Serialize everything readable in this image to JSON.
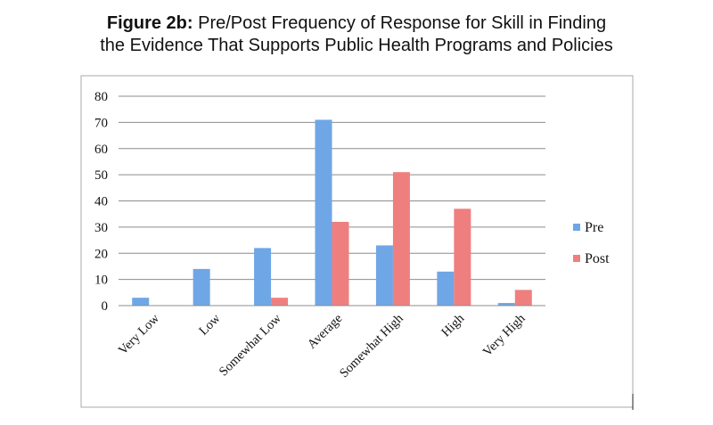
{
  "title": {
    "prefix": "Figure 2b:",
    "line1": "Pre/Post Frequency of Response for Skill in Finding",
    "line2": "the Evidence That Supports Public Health Programs and Policies"
  },
  "chart_data": {
    "type": "bar",
    "categories": [
      "Very Low",
      "Low",
      "Somewhat Low",
      "Average",
      "Somewhat High",
      "High",
      "Very High"
    ],
    "series": [
      {
        "name": "Pre",
        "values": [
          3,
          14,
          22,
          71,
          23,
          13,
          1
        ],
        "color": "#6fa6e6"
      },
      {
        "name": "Post",
        "values": [
          0,
          0,
          3,
          32,
          51,
          37,
          6
        ],
        "color": "#ef7f7f"
      }
    ],
    "ylim": [
      0,
      80
    ],
    "yticks": [
      0,
      10,
      20,
      30,
      40,
      50,
      60,
      70,
      80
    ],
    "grid": true,
    "legend": "right",
    "xlabel": "",
    "ylabel": ""
  }
}
